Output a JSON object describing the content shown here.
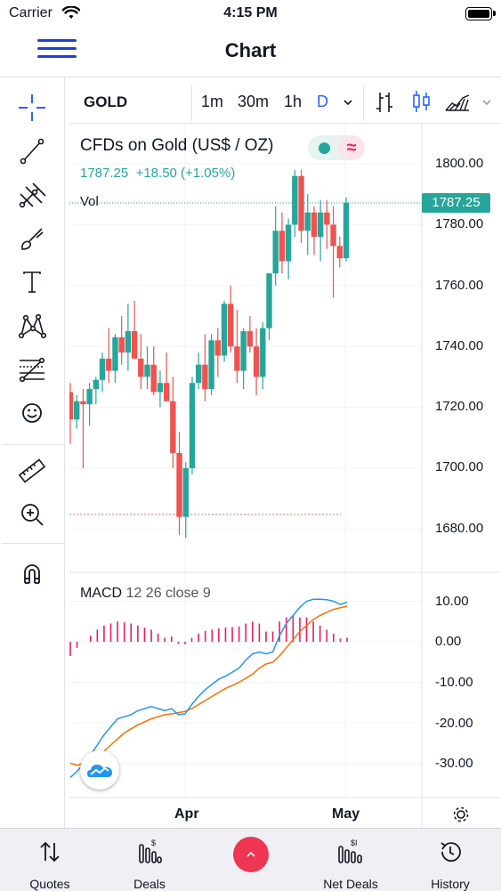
{
  "status_bar": {
    "carrier": "Carrier",
    "time": "4:15 PM"
  },
  "nav": {
    "title": "Chart"
  },
  "toolbar": {
    "symbol": "GOLD",
    "intervals": [
      "1m",
      "30m",
      "1h",
      "D"
    ],
    "active_interval": "D"
  },
  "legend": {
    "name": "CFDs on Gold (US$ / OZ)",
    "price": "1787.25",
    "change": "+18.50 (+1.05%)",
    "volume_label": "Vol"
  },
  "price_axis": {
    "labels": [
      "1800.00",
      "1780.00",
      "1760.00",
      "1740.00",
      "1720.00",
      "1700.00",
      "1680.00"
    ],
    "current_price": "1787.25"
  },
  "macd": {
    "label": "MACD",
    "params": "12 26 close 9",
    "axis_labels": [
      "10.00",
      "0.00",
      "-10.00",
      "-20.00",
      "-30.00"
    ]
  },
  "time_axis": {
    "labels": [
      "Apr",
      "May"
    ]
  },
  "tabs": [
    {
      "label": "Quotes",
      "icon": "sort-arrows-icon"
    },
    {
      "label": "Deals",
      "icon": "deals-icon"
    },
    {
      "label": "",
      "icon": "chevron-up-icon"
    },
    {
      "label": "Net Deals",
      "icon": "net-deals-icon"
    },
    {
      "label": "History",
      "icon": "history-icon"
    }
  ],
  "colors": {
    "up": "#26a69a",
    "down": "#ef5350",
    "accent": "#2962ff",
    "macd": "#2196f3",
    "signal": "#ff6d00",
    "histogram": "#e91e63"
  },
  "chart_data": [
    {
      "type": "candlestick",
      "title": "CFDs on Gold (US$ / OZ)",
      "ylim": [
        1675,
        1807
      ],
      "candles": [
        [
          1725,
          1728,
          1708,
          1716
        ],
        [
          1716,
          1724,
          1713,
          1722
        ],
        [
          1722,
          1726,
          1700,
          1721
        ],
        [
          1721,
          1728,
          1714,
          1726
        ],
        [
          1726,
          1730,
          1721,
          1729
        ],
        [
          1729,
          1738,
          1725,
          1736
        ],
        [
          1736,
          1746,
          1728,
          1732
        ],
        [
          1732,
          1744,
          1728,
          1743
        ],
        [
          1743,
          1750,
          1734,
          1738
        ],
        [
          1738,
          1754,
          1732,
          1745
        ],
        [
          1745,
          1755,
          1736,
          1736
        ],
        [
          1736,
          1744,
          1726,
          1730
        ],
        [
          1730,
          1740,
          1726,
          1734
        ],
        [
          1734,
          1740,
          1724,
          1725
        ],
        [
          1725,
          1732,
          1720,
          1728
        ],
        [
          1728,
          1738,
          1722,
          1722
        ],
        [
          1722,
          1730,
          1700,
          1705
        ],
        [
          1705,
          1712,
          1678,
          1684
        ],
        [
          1684,
          1702,
          1677,
          1700
        ],
        [
          1700,
          1730,
          1698,
          1728
        ],
        [
          1728,
          1738,
          1726,
          1734
        ],
        [
          1734,
          1744,
          1722,
          1726
        ],
        [
          1726,
          1744,
          1724,
          1742
        ],
        [
          1742,
          1746,
          1730,
          1737
        ],
        [
          1737,
          1755,
          1735,
          1754
        ],
        [
          1754,
          1760,
          1738,
          1740
        ],
        [
          1740,
          1752,
          1728,
          1732
        ],
        [
          1732,
          1746,
          1726,
          1745
        ],
        [
          1745,
          1750,
          1738,
          1740
        ],
        [
          1740,
          1746,
          1724,
          1730
        ],
        [
          1730,
          1748,
          1726,
          1746
        ],
        [
          1746,
          1764,
          1742,
          1764
        ],
        [
          1764,
          1786,
          1760,
          1778
        ],
        [
          1778,
          1784,
          1764,
          1768
        ],
        [
          1768,
          1782,
          1762,
          1780
        ],
        [
          1780,
          1798,
          1776,
          1796
        ],
        [
          1796,
          1798,
          1774,
          1778
        ],
        [
          1778,
          1790,
          1770,
          1784
        ],
        [
          1784,
          1786,
          1770,
          1776
        ],
        [
          1776,
          1788,
          1768,
          1784
        ],
        [
          1784,
          1788,
          1772,
          1780
        ],
        [
          1780,
          1786,
          1756,
          1773
        ],
        [
          1773,
          1776,
          1766,
          1769
        ],
        [
          1769,
          1789,
          1768,
          1787.25
        ]
      ]
    },
    {
      "type": "line",
      "title": "MACD 12 26 close 9",
      "ylim": [
        -36,
        12
      ],
      "series": [
        {
          "values": [
            -33.5,
            -32,
            -30,
            -28,
            -25.5,
            -23,
            -21,
            -19,
            -18.5,
            -18,
            -17,
            -16.5,
            -16,
            -16.5,
            -17,
            -16.5,
            -18,
            -17.8,
            -15.5,
            -13.5,
            -11.8,
            -10.5,
            -9.2,
            -8.5,
            -7.5,
            -6.5,
            -4.5,
            -3,
            -2.5,
            -3,
            -2.5,
            1.5,
            4.5,
            6.5,
            8.5,
            10,
            10.5,
            10.5,
            10.4,
            10,
            9.2,
            9.8
          ]
        },
        {
          "values": [
            -30,
            -30.5,
            -30,
            -29.5,
            -28.5,
            -27,
            -25.5,
            -24,
            -22.5,
            -21.5,
            -20.5,
            -19.8,
            -19,
            -18.5,
            -18,
            -17.8,
            -17.5,
            -17.2,
            -16.5,
            -15.5,
            -14.5,
            -13.5,
            -12.5,
            -11.5,
            -10.8,
            -10,
            -9,
            -8,
            -6.5,
            -5.5,
            -5,
            -3.5,
            -1.5,
            0.5,
            2.5,
            4,
            5.5,
            6.5,
            7.3,
            8,
            8.4,
            8.8
          ]
        }
      ],
      "histogram": [
        -3.5,
        -1.5,
        0,
        1.5,
        3,
        4,
        4.5,
        5,
        4.8,
        4.5,
        4,
        3.5,
        3,
        2,
        1,
        1.3,
        -0.5,
        -0.6,
        1,
        2,
        2.7,
        3,
        3.3,
        3.5,
        3.6,
        3.8,
        4.5,
        5,
        4.5,
        2.5,
        2.5,
        5,
        6,
        6.5,
        6,
        6,
        5,
        4,
        3,
        2,
        0.8,
        1
      ]
    }
  ]
}
